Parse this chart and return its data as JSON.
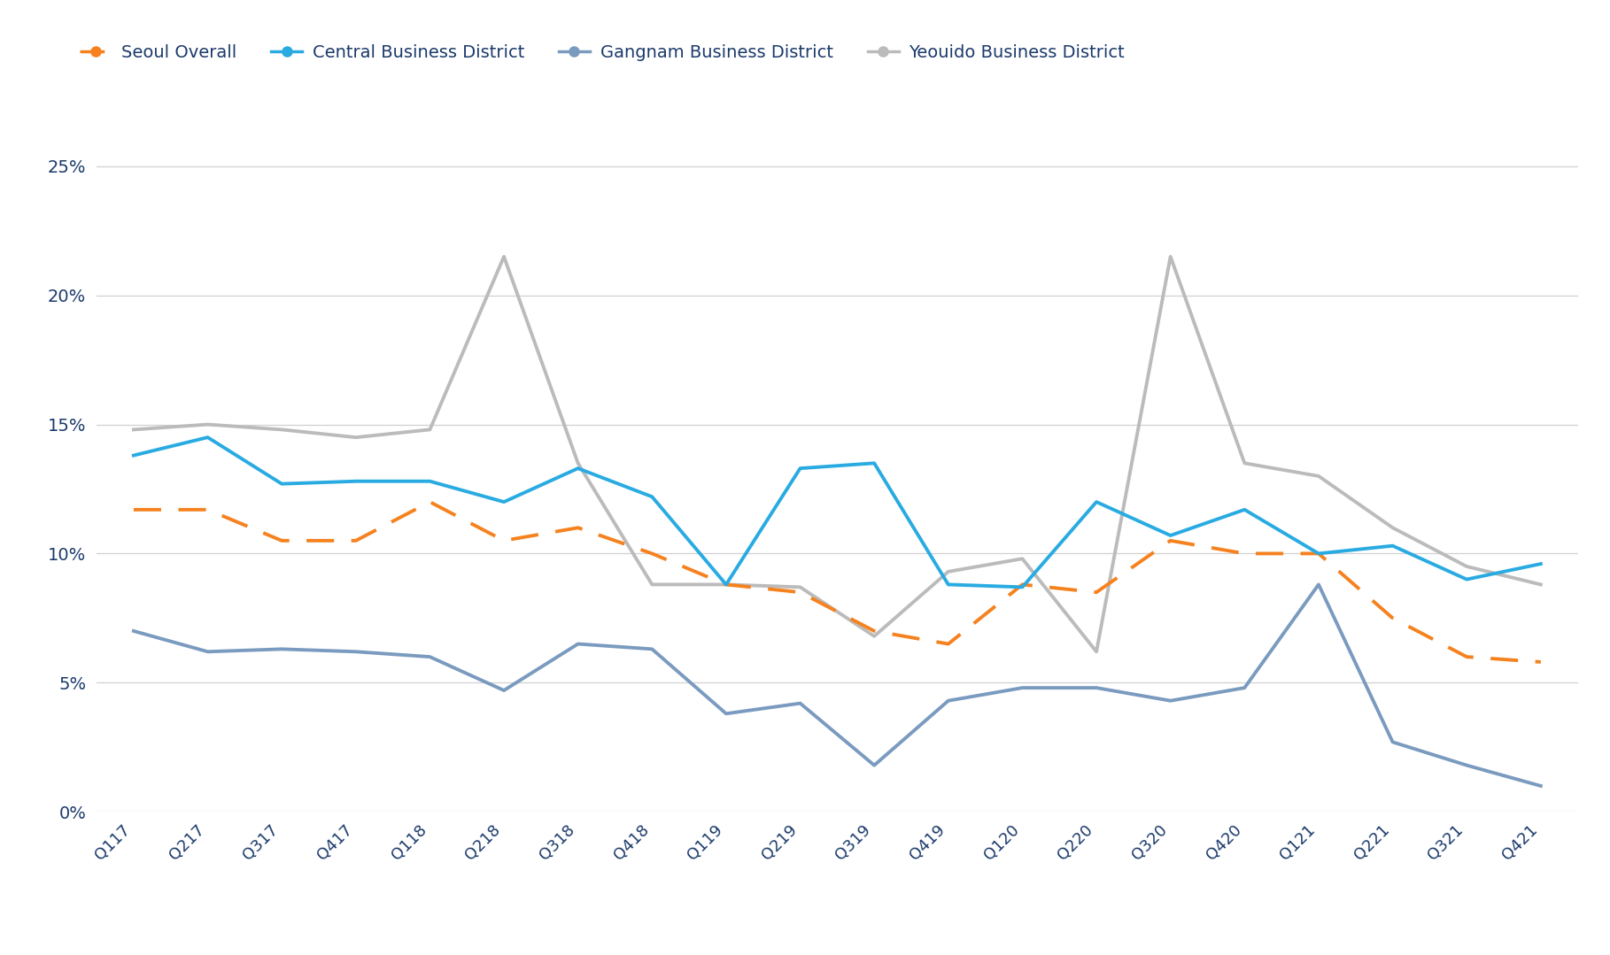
{
  "x_labels": [
    "Q117",
    "Q217",
    "Q317",
    "Q417",
    "Q118",
    "Q218",
    "Q318",
    "Q418",
    "Q119",
    "Q219",
    "Q319",
    "Q419",
    "Q120",
    "Q220",
    "Q320",
    "Q420",
    "Q121",
    "Q221",
    "Q321",
    "Q421"
  ],
  "seoul_overall": [
    0.117,
    0.117,
    0.105,
    0.105,
    0.12,
    0.105,
    0.11,
    0.1,
    0.088,
    0.085,
    0.07,
    0.065,
    0.088,
    0.085,
    0.105,
    0.1,
    0.1,
    0.075,
    0.06,
    0.058
  ],
  "central": [
    0.138,
    0.145,
    0.127,
    0.128,
    0.128,
    0.12,
    0.133,
    0.122,
    0.088,
    0.133,
    0.135,
    0.088,
    0.087,
    0.12,
    0.107,
    0.117,
    0.1,
    0.103,
    0.09,
    0.096
  ],
  "gangnam": [
    0.07,
    0.062,
    0.063,
    0.062,
    0.06,
    0.047,
    0.065,
    0.063,
    0.038,
    0.042,
    0.018,
    0.043,
    0.048,
    0.048,
    0.043,
    0.048,
    0.088,
    0.027,
    0.018,
    0.01
  ],
  "yeouido": [
    0.148,
    0.15,
    0.148,
    0.145,
    0.148,
    0.215,
    0.135,
    0.088,
    0.088,
    0.087,
    0.068,
    0.093,
    0.098,
    0.062,
    0.215,
    0.135,
    0.13,
    0.11,
    0.095,
    0.088
  ],
  "legend_labels": [
    "Seoul Overall",
    "Central Business District",
    "Gangnam Business District",
    "Yeouido Business District"
  ],
  "colors": {
    "seoul": "#F5821F",
    "central": "#29ABE2",
    "gangnam": "#7A9BBF",
    "yeouido": "#BBBBBB"
  },
  "ylim": [
    0,
    0.27
  ],
  "yticks": [
    0.0,
    0.05,
    0.1,
    0.15,
    0.2,
    0.25
  ],
  "bg_color": "#FFFFFF",
  "grid_color": "#D0D0D0",
  "text_color": "#1B3A6B",
  "tick_label_color": "#1B3A6B"
}
